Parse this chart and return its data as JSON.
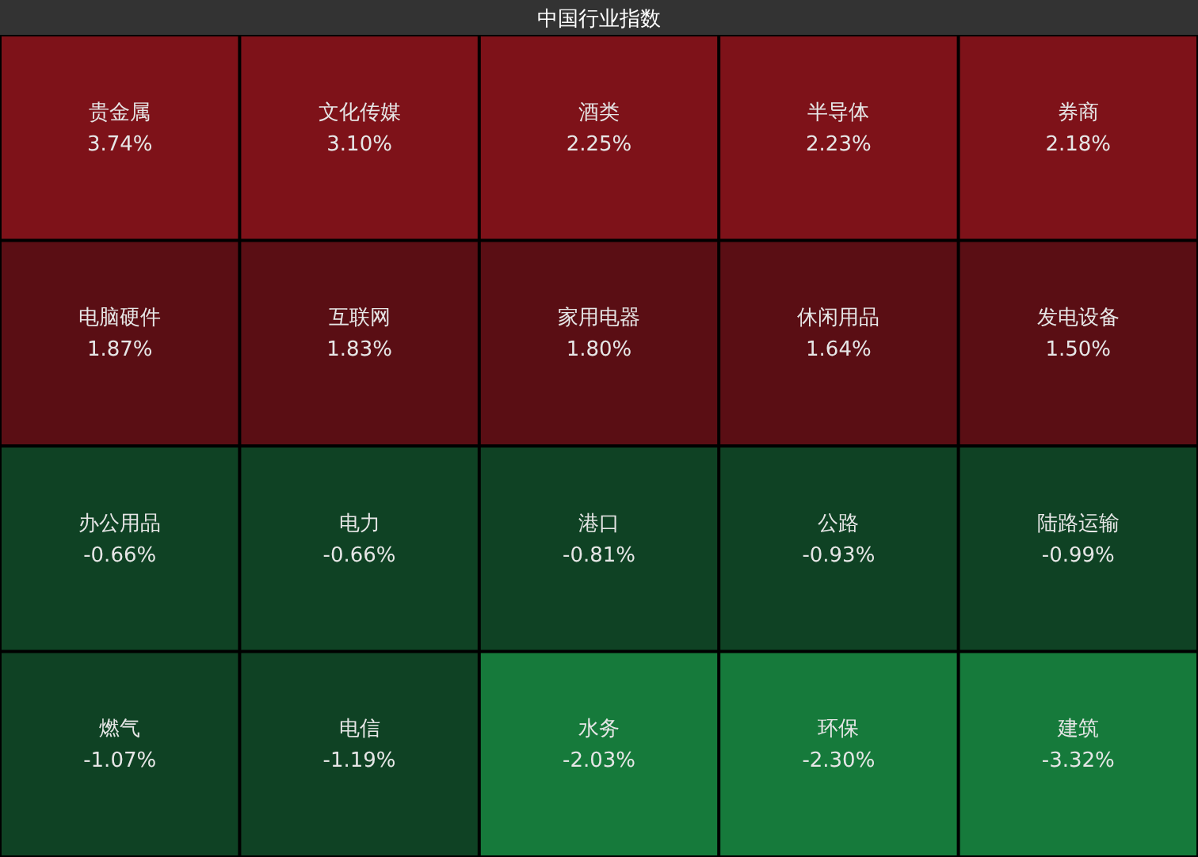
{
  "chart_data": {
    "type": "other",
    "title": "中国行业指数",
    "categories": [
      "贵金属",
      "文化传媒",
      "酒类",
      "半导体",
      "券商",
      "电脑硬件",
      "互联网",
      "家用电器",
      "休闲用品",
      "发电设备",
      "办公用品",
      "电力",
      "港口",
      "公路",
      "陆路运输",
      "燃气",
      "电信",
      "水务",
      "环保",
      "建筑"
    ],
    "values": [
      3.74,
      3.1,
      2.25,
      2.23,
      2.18,
      1.87,
      1.83,
      1.8,
      1.64,
      1.5,
      -0.66,
      -0.66,
      -0.81,
      -0.93,
      -0.99,
      -1.07,
      -1.19,
      -2.03,
      -2.3,
      -3.32
    ],
    "value_labels": [
      "3.74%",
      "3.10%",
      "2.25%",
      "2.23%",
      "2.18%",
      "1.87%",
      "1.83%",
      "1.80%",
      "1.64%",
      "1.50%",
      "-0.66%",
      "-0.66%",
      "-0.81%",
      "-0.93%",
      "-0.99%",
      "-1.07%",
      "-1.19%",
      "-2.03%",
      "-2.30%",
      "-3.32%"
    ],
    "colors": [
      "#7e1219",
      "#7e1219",
      "#7e1219",
      "#7e1219",
      "#7e1219",
      "#5a0e14",
      "#5a0e14",
      "#5a0e14",
      "#5a0e14",
      "#5a0e14",
      "#0f4224",
      "#0f4224",
      "#0f4224",
      "#0f4224",
      "#0f4224",
      "#0f4224",
      "#0f4224",
      "#167a3b",
      "#167a3b",
      "#167a3b"
    ]
  }
}
